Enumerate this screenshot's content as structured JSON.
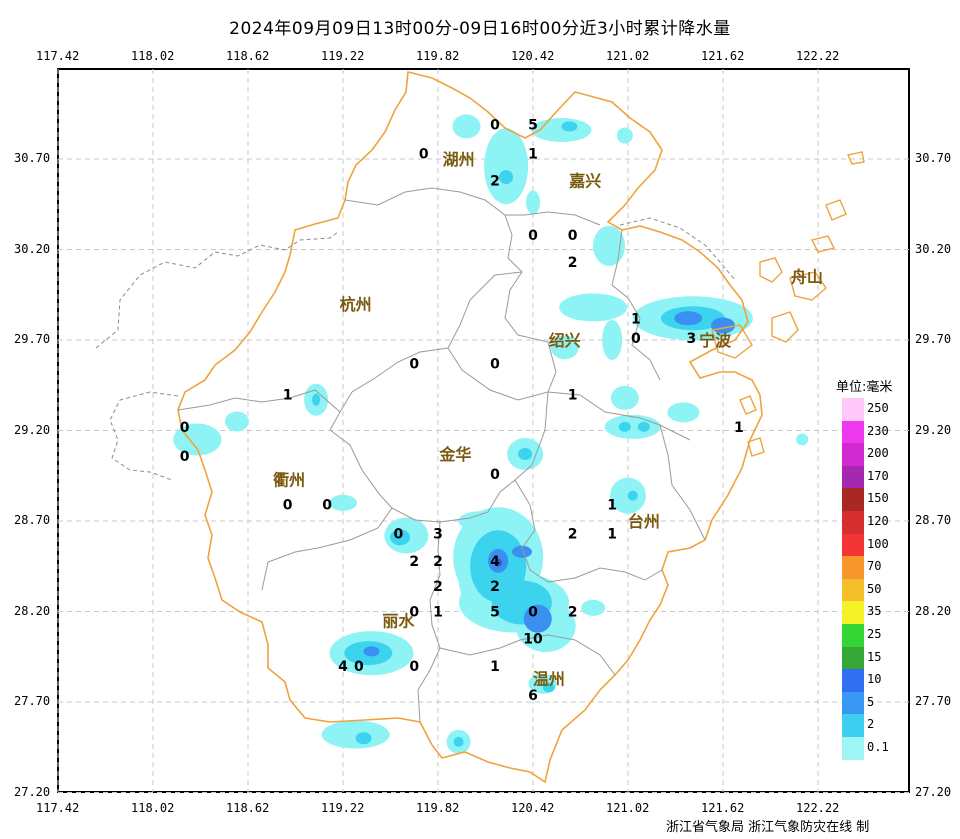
{
  "title": "2024年09月09日13时00分-09日16时00分近3小时累计降水量",
  "lon_ticks": [
    "117.42",
    "118.02",
    "118.62",
    "119.22",
    "119.82",
    "120.42",
    "121.02",
    "121.62",
    "122.22"
  ],
  "lat_ticks": [
    "30.70",
    "30.20",
    "29.70",
    "29.20",
    "28.70",
    "28.20",
    "27.70",
    "27.20"
  ],
  "cities": [
    {
      "name": "湖州",
      "lon": 119.95,
      "lat": 30.7
    },
    {
      "name": "嘉兴",
      "lon": 120.75,
      "lat": 30.58
    },
    {
      "name": "杭州",
      "lon": 119.3,
      "lat": 29.9
    },
    {
      "name": "绍兴",
      "lon": 120.62,
      "lat": 29.7
    },
    {
      "name": "宁波",
      "lon": 121.57,
      "lat": 29.7
    },
    {
      "name": "舟山",
      "lon": 122.15,
      "lat": 30.05
    },
    {
      "name": "金华",
      "lon": 119.93,
      "lat": 29.07
    },
    {
      "name": "衢州",
      "lon": 118.88,
      "lat": 28.93
    },
    {
      "name": "台州",
      "lon": 121.12,
      "lat": 28.7
    },
    {
      "name": "丽水",
      "lon": 119.57,
      "lat": 28.15
    },
    {
      "name": "温州",
      "lon": 120.52,
      "lat": 27.83
    }
  ],
  "stations": [
    {
      "v": "0",
      "lon": 120.18,
      "lat": 30.89
    },
    {
      "v": "5",
      "lon": 120.42,
      "lat": 30.89
    },
    {
      "v": "0",
      "lon": 119.73,
      "lat": 30.73
    },
    {
      "v": "1",
      "lon": 120.42,
      "lat": 30.73
    },
    {
      "v": "2",
      "lon": 120.18,
      "lat": 30.58
    },
    {
      "v": "0",
      "lon": 120.42,
      "lat": 30.28
    },
    {
      "v": "0",
      "lon": 120.67,
      "lat": 30.28
    },
    {
      "v": "2",
      "lon": 120.67,
      "lat": 30.13
    },
    {
      "v": "1",
      "lon": 121.07,
      "lat": 29.82
    },
    {
      "v": "0",
      "lon": 121.07,
      "lat": 29.71
    },
    {
      "v": "3",
      "lon": 121.42,
      "lat": 29.71
    },
    {
      "v": "0",
      "lon": 119.67,
      "lat": 29.57
    },
    {
      "v": "0",
      "lon": 120.18,
      "lat": 29.57
    },
    {
      "v": "1",
      "lon": 118.87,
      "lat": 29.4
    },
    {
      "v": "1",
      "lon": 120.67,
      "lat": 29.4
    },
    {
      "v": "1",
      "lon": 121.72,
      "lat": 29.22
    },
    {
      "v": "0",
      "lon": 118.22,
      "lat": 29.22
    },
    {
      "v": "0",
      "lon": 118.22,
      "lat": 29.06
    },
    {
      "v": "0",
      "lon": 120.18,
      "lat": 28.96
    },
    {
      "v": "0",
      "lon": 118.87,
      "lat": 28.79
    },
    {
      "v": "0",
      "lon": 119.12,
      "lat": 28.79
    },
    {
      "v": "1",
      "lon": 120.92,
      "lat": 28.79
    },
    {
      "v": "0",
      "lon": 119.57,
      "lat": 28.63
    },
    {
      "v": "3",
      "lon": 119.82,
      "lat": 28.63
    },
    {
      "v": "2",
      "lon": 120.67,
      "lat": 28.63
    },
    {
      "v": "1",
      "lon": 120.92,
      "lat": 28.63
    },
    {
      "v": "2",
      "lon": 119.67,
      "lat": 28.48
    },
    {
      "v": "2",
      "lon": 119.82,
      "lat": 28.48
    },
    {
      "v": "4",
      "lon": 120.18,
      "lat": 28.48
    },
    {
      "v": "2",
      "lon": 119.82,
      "lat": 28.34
    },
    {
      "v": "2",
      "lon": 120.18,
      "lat": 28.34
    },
    {
      "v": "0",
      "lon": 119.67,
      "lat": 28.2
    },
    {
      "v": "1",
      "lon": 119.82,
      "lat": 28.2
    },
    {
      "v": "5",
      "lon": 120.18,
      "lat": 28.2
    },
    {
      "v": "0",
      "lon": 120.42,
      "lat": 28.2
    },
    {
      "v": "2",
      "lon": 120.67,
      "lat": 28.2
    },
    {
      "v": "10",
      "lon": 120.42,
      "lat": 28.05
    },
    {
      "v": "4",
      "lon": 119.22,
      "lat": 27.9
    },
    {
      "v": "0",
      "lon": 119.32,
      "lat": 27.9
    },
    {
      "v": "0",
      "lon": 119.67,
      "lat": 27.9
    },
    {
      "v": "1",
      "lon": 120.18,
      "lat": 27.9
    },
    {
      "v": "6",
      "lon": 120.42,
      "lat": 27.74
    }
  ],
  "rain": [
    {
      "lon": 120.0,
      "lat": 30.88,
      "rx": 14,
      "ry": 12,
      "lvl": 1
    },
    {
      "lon": 120.25,
      "lat": 30.66,
      "rx": 22,
      "ry": 38,
      "lvl": 1
    },
    {
      "lon": 120.25,
      "lat": 30.6,
      "rx": 7,
      "ry": 7,
      "lvl": 2
    },
    {
      "lon": 120.6,
      "lat": 30.86,
      "rx": 30,
      "ry": 12,
      "lvl": 1
    },
    {
      "lon": 120.65,
      "lat": 30.88,
      "rx": 8,
      "ry": 5,
      "lvl": 2
    },
    {
      "lon": 120.42,
      "lat": 30.46,
      "rx": 7,
      "ry": 12,
      "lvl": 1
    },
    {
      "lon": 121.0,
      "lat": 30.83,
      "rx": 8,
      "ry": 8,
      "lvl": 1
    },
    {
      "lon": 120.9,
      "lat": 30.22,
      "rx": 16,
      "ry": 20,
      "lvl": 1
    },
    {
      "lon": 120.8,
      "lat": 29.88,
      "rx": 34,
      "ry": 14,
      "lvl": 1
    },
    {
      "lon": 120.62,
      "lat": 29.66,
      "rx": 14,
      "ry": 12,
      "lvl": 1
    },
    {
      "lon": 120.92,
      "lat": 29.7,
      "rx": 10,
      "ry": 20,
      "lvl": 1
    },
    {
      "lon": 121.43,
      "lat": 29.82,
      "rx": 60,
      "ry": 22,
      "lvl": 1
    },
    {
      "lon": 121.43,
      "lat": 29.82,
      "rx": 32,
      "ry": 12,
      "lvl": 2
    },
    {
      "lon": 121.4,
      "lat": 29.82,
      "rx": 14,
      "ry": 7,
      "lvl": 3
    },
    {
      "lon": 121.62,
      "lat": 29.78,
      "rx": 12,
      "ry": 8,
      "lvl": 3
    },
    {
      "lon": 121.0,
      "lat": 29.38,
      "rx": 14,
      "ry": 12,
      "lvl": 1
    },
    {
      "lon": 121.05,
      "lat": 29.22,
      "rx": 28,
      "ry": 12,
      "lvl": 1
    },
    {
      "lon": 121.0,
      "lat": 29.22,
      "rx": 6,
      "ry": 5,
      "lvl": 2
    },
    {
      "lon": 121.12,
      "lat": 29.22,
      "rx": 6,
      "ry": 5,
      "lvl": 2
    },
    {
      "lon": 121.37,
      "lat": 29.3,
      "rx": 16,
      "ry": 10,
      "lvl": 1
    },
    {
      "lon": 119.05,
      "lat": 29.37,
      "rx": 12,
      "ry": 16,
      "lvl": 1
    },
    {
      "lon": 119.05,
      "lat": 29.37,
      "rx": 4,
      "ry": 6,
      "lvl": 2
    },
    {
      "lon": 118.3,
      "lat": 29.15,
      "rx": 24,
      "ry": 16,
      "lvl": 1
    },
    {
      "lon": 118.55,
      "lat": 29.25,
      "rx": 12,
      "ry": 10,
      "lvl": 1
    },
    {
      "lon": 120.37,
      "lat": 29.07,
      "rx": 18,
      "ry": 16,
      "lvl": 1
    },
    {
      "lon": 120.37,
      "lat": 29.07,
      "rx": 7,
      "ry": 6,
      "lvl": 2
    },
    {
      "lon": 121.02,
      "lat": 28.84,
      "rx": 18,
      "ry": 18,
      "lvl": 1
    },
    {
      "lon": 121.05,
      "lat": 28.84,
      "rx": 5,
      "ry": 5,
      "lvl": 2
    },
    {
      "lon": 119.22,
      "lat": 28.8,
      "rx": 14,
      "ry": 8,
      "lvl": 1
    },
    {
      "lon": 119.62,
      "lat": 28.62,
      "rx": 22,
      "ry": 18,
      "lvl": 1
    },
    {
      "lon": 119.58,
      "lat": 28.61,
      "rx": 10,
      "ry": 8,
      "lvl": 2
    },
    {
      "lon": 120.2,
      "lat": 28.5,
      "rx": 45,
      "ry": 50,
      "lvl": 1
    },
    {
      "lon": 120.2,
      "lat": 28.4,
      "rx": 40,
      "ry": 48,
      "lvl": 1
    },
    {
      "lon": 120.3,
      "lat": 28.25,
      "rx": 55,
      "ry": 30,
      "lvl": 1
    },
    {
      "lon": 120.5,
      "lat": 28.12,
      "rx": 30,
      "ry": 26,
      "lvl": 1
    },
    {
      "lon": 120.2,
      "lat": 28.45,
      "rx": 28,
      "ry": 36,
      "lvl": 2
    },
    {
      "lon": 120.35,
      "lat": 28.25,
      "rx": 30,
      "ry": 22,
      "lvl": 2
    },
    {
      "lon": 120.2,
      "lat": 28.48,
      "rx": 10,
      "ry": 12,
      "lvl": 3
    },
    {
      "lon": 120.35,
      "lat": 28.53,
      "rx": 10,
      "ry": 6,
      "lvl": 3
    },
    {
      "lon": 120.45,
      "lat": 28.16,
      "rx": 14,
      "ry": 14,
      "lvl": 3
    },
    {
      "lon": 120.2,
      "lat": 28.47,
      "rx": 4,
      "ry": 4,
      "lvl": 4
    },
    {
      "lon": 120.8,
      "lat": 28.22,
      "rx": 12,
      "ry": 8,
      "lvl": 1
    },
    {
      "lon": 120.1,
      "lat": 28.7,
      "rx": 24,
      "ry": 10,
      "lvl": 1
    },
    {
      "lon": 120.48,
      "lat": 27.8,
      "rx": 14,
      "ry": 10,
      "lvl": 1
    },
    {
      "lon": 120.52,
      "lat": 27.78,
      "rx": 6,
      "ry": 5,
      "lvl": 2
    },
    {
      "lon": 119.4,
      "lat": 27.97,
      "rx": 42,
      "ry": 22,
      "lvl": 1
    },
    {
      "lon": 119.38,
      "lat": 27.97,
      "rx": 24,
      "ry": 12,
      "lvl": 2
    },
    {
      "lon": 119.4,
      "lat": 27.98,
      "rx": 8,
      "ry": 5,
      "lvl": 3
    },
    {
      "lon": 119.3,
      "lat": 27.52,
      "rx": 34,
      "ry": 14,
      "lvl": 1
    },
    {
      "lon": 119.35,
      "lat": 27.5,
      "rx": 8,
      "ry": 6,
      "lvl": 2
    },
    {
      "lon": 119.95,
      "lat": 27.48,
      "rx": 12,
      "ry": 12,
      "lvl": 1
    },
    {
      "lon": 119.95,
      "lat": 27.48,
      "rx": 5,
      "ry": 5,
      "lvl": 2
    },
    {
      "lon": 122.12,
      "lat": 29.15,
      "rx": 6,
      "ry": 6,
      "lvl": 1
    }
  ],
  "level_colors": [
    "#8ef3f4",
    "#3cd3ee",
    "#3a8ff0",
    "#2a5fd8",
    "#e23c2c"
  ],
  "legend": {
    "title": "单位:毫米",
    "items": [
      {
        "label": "250",
        "color": "#ffc8fa"
      },
      {
        "label": "230",
        "color": "#ee38ee"
      },
      {
        "label": "200",
        "color": "#d02ad0"
      },
      {
        "label": "170",
        "color": "#a429ae"
      },
      {
        "label": "150",
        "color": "#a92824"
      },
      {
        "label": "120",
        "color": "#d62f2f"
      },
      {
        "label": "100",
        "color": "#f33535"
      },
      {
        "label": "70",
        "color": "#f7962a"
      },
      {
        "label": "50",
        "color": "#f4bf2b"
      },
      {
        "label": "35",
        "color": "#f5f127"
      },
      {
        "label": "25",
        "color": "#33d634"
      },
      {
        "label": "15",
        "color": "#35a838"
      },
      {
        "label": "10",
        "color": "#2f6ff0"
      },
      {
        "label": "5",
        "color": "#3a98f5"
      },
      {
        "label": "2",
        "color": "#3ccff0"
      },
      {
        "label": "0.1",
        "color": "#9ff4f6"
      }
    ]
  },
  "credit": "浙江省气象局  浙江气象防灾在线 制"
}
